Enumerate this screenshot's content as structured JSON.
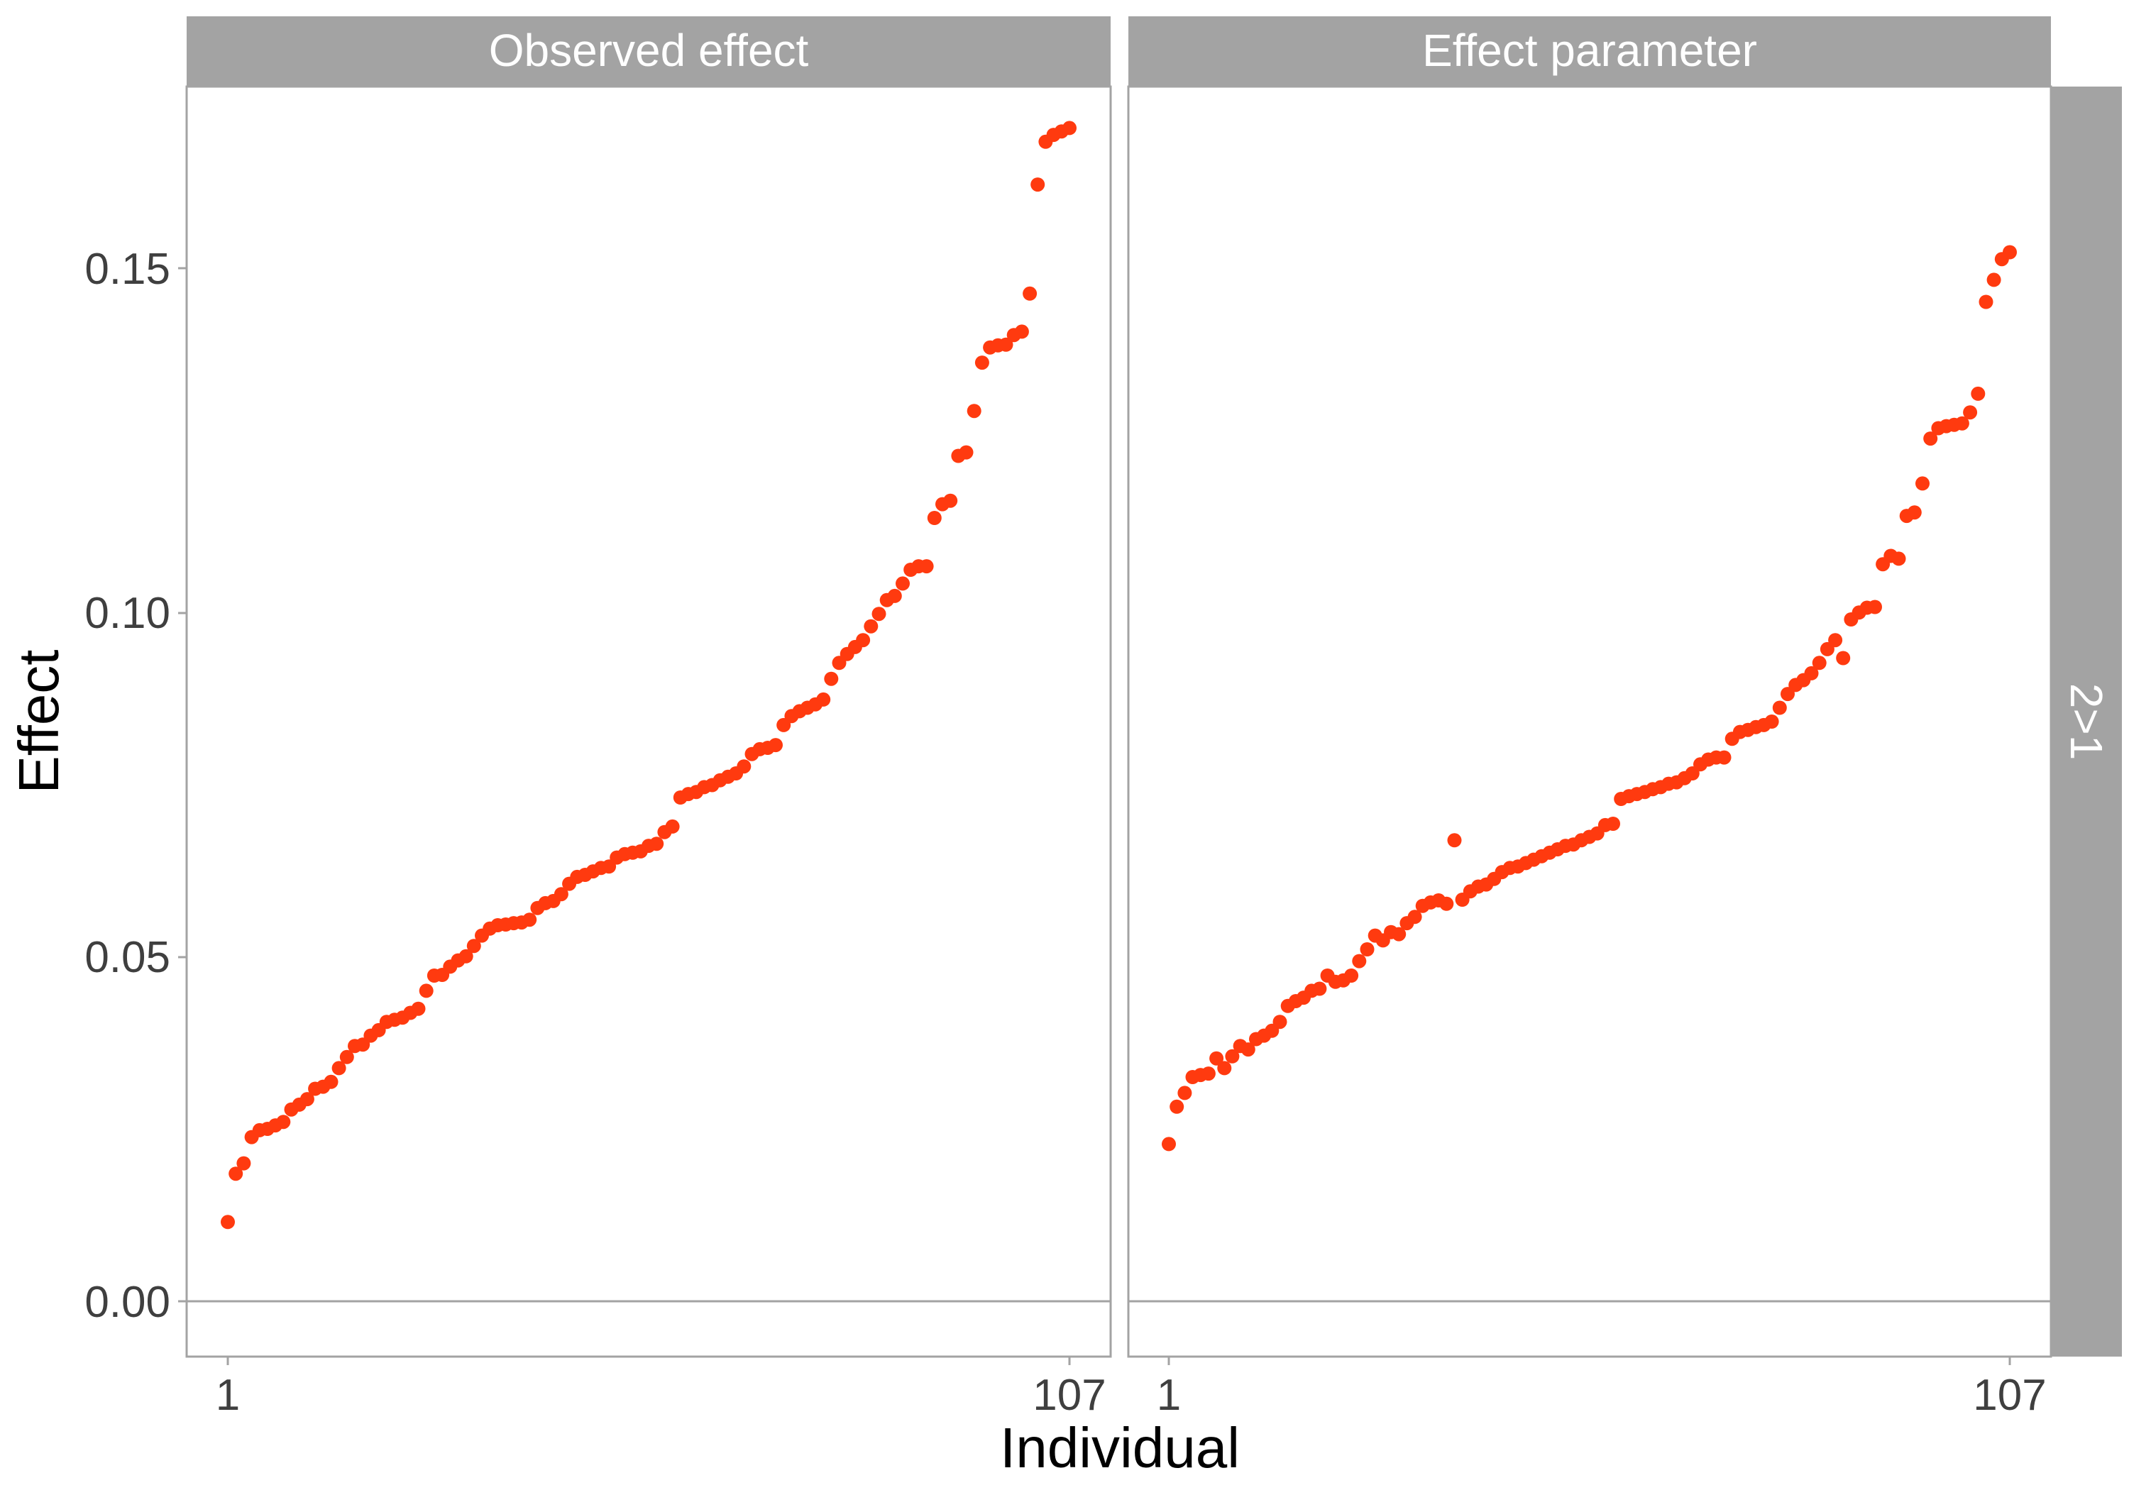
{
  "chart_data": {
    "type": "scatter",
    "point_color": "#FF3A0F",
    "strip_color": "#A3A3A3",
    "reference_line_y": 0,
    "xlabel": "Individual",
    "ylabel": "Effect",
    "xlim": [
      1,
      107
    ],
    "ylim": [
      -0.008,
      0.176
    ],
    "x_ticks": [
      1,
      107
    ],
    "y_ticks": [
      "0.00",
      "0.05",
      "0.10",
      "0.15"
    ],
    "row_strip_label": "2>1",
    "panels": [
      {
        "strip_label": "Observed effect",
        "x": [
          1,
          2,
          3,
          4,
          5,
          6,
          7,
          8,
          9,
          10,
          11,
          12,
          13,
          14,
          15,
          16,
          17,
          18,
          19,
          20,
          21,
          22,
          23,
          24,
          25,
          26,
          27,
          28,
          29,
          30,
          31,
          32,
          33,
          34,
          35,
          36,
          37,
          38,
          39,
          40,
          41,
          42,
          43,
          44,
          45,
          46,
          47,
          48,
          49,
          50,
          51,
          52,
          53,
          54,
          55,
          56,
          57,
          58,
          59,
          60,
          61,
          62,
          63,
          64,
          65,
          66,
          67,
          68,
          69,
          70,
          71,
          72,
          73,
          74,
          75,
          76,
          77,
          78,
          79,
          80,
          81,
          82,
          83,
          84,
          85,
          86,
          87,
          88,
          89,
          90,
          91,
          92,
          93,
          94,
          95,
          96,
          97,
          98,
          99,
          100,
          101,
          102,
          103,
          104,
          105,
          106,
          107
        ],
        "y": [
          0.0115,
          0.0185,
          0.02,
          0.0238,
          0.0248,
          0.025,
          0.0255,
          0.026,
          0.0278,
          0.0285,
          0.0293,
          0.0308,
          0.0311,
          0.0318,
          0.0338,
          0.0354,
          0.037,
          0.0372,
          0.0385,
          0.0393,
          0.0405,
          0.0408,
          0.0411,
          0.0418,
          0.0424,
          0.045,
          0.0472,
          0.0473,
          0.0485,
          0.0494,
          0.05,
          0.0515,
          0.053,
          0.054,
          0.0545,
          0.0546,
          0.0548,
          0.0549,
          0.0553,
          0.057,
          0.0577,
          0.058,
          0.059,
          0.0605,
          0.0615,
          0.0618,
          0.0623,
          0.0628,
          0.063,
          0.0643,
          0.0648,
          0.065,
          0.0652,
          0.066,
          0.0663,
          0.068,
          0.0688,
          0.073,
          0.0735,
          0.0738,
          0.0745,
          0.0748,
          0.0755,
          0.076,
          0.0765,
          0.0775,
          0.0793,
          0.08,
          0.0802,
          0.0806,
          0.0835,
          0.0848,
          0.0855,
          0.086,
          0.0865,
          0.0872,
          0.0902,
          0.0925,
          0.0938,
          0.0948,
          0.0958,
          0.0978,
          0.0996,
          0.1016,
          0.1022,
          0.104,
          0.106,
          0.1065,
          0.1065,
          0.1135,
          0.1155,
          0.116,
          0.1225,
          0.123,
          0.129,
          0.136,
          0.1382,
          0.1385,
          0.1386,
          0.14,
          0.1405,
          0.146,
          0.1618,
          0.168,
          0.169,
          0.1695,
          0.17
        ],
        "note_unused": ""
      },
      {
        "strip_label": "Effect parameter",
        "x": [
          1,
          2,
          3,
          4,
          5,
          6,
          7,
          8,
          9,
          10,
          11,
          12,
          13,
          14,
          15,
          16,
          17,
          18,
          19,
          20,
          21,
          22,
          23,
          24,
          25,
          26,
          27,
          28,
          29,
          30,
          31,
          32,
          33,
          34,
          35,
          36,
          37,
          38,
          39,
          40,
          41,
          42,
          43,
          44,
          45,
          46,
          47,
          48,
          49,
          50,
          51,
          52,
          53,
          54,
          55,
          56,
          57,
          58,
          59,
          60,
          61,
          62,
          63,
          64,
          65,
          66,
          67,
          68,
          69,
          70,
          71,
          72,
          73,
          74,
          75,
          76,
          77,
          78,
          79,
          80,
          81,
          82,
          83,
          84,
          85,
          86,
          87,
          88,
          89,
          90,
          91,
          92,
          93,
          94,
          95,
          96,
          97,
          98,
          99,
          100,
          101,
          102,
          103,
          104,
          105,
          106,
          107
        ],
        "y": [
          0.0228,
          0.0282,
          0.0302,
          0.0325,
          0.0328,
          0.033,
          0.0352,
          0.0338,
          0.0355,
          0.037,
          0.0365,
          0.038,
          0.0385,
          0.0392,
          0.0405,
          0.0428,
          0.0435,
          0.044,
          0.045,
          0.0453,
          0.0472,
          0.0463,
          0.0465,
          0.0472,
          0.0493,
          0.051,
          0.053,
          0.0523,
          0.0535,
          0.0532,
          0.0548,
          0.0557,
          0.0573,
          0.0578,
          0.0581,
          0.0576,
          0.0668,
          0.0582,
          0.0594,
          0.0601,
          0.0604,
          0.0612,
          0.0622,
          0.0628,
          0.063,
          0.0635,
          0.064,
          0.0645,
          0.065,
          0.0655,
          0.066,
          0.0662,
          0.0668,
          0.0673,
          0.0678,
          0.069,
          0.0692,
          0.0728,
          0.0732,
          0.0735,
          0.0738,
          0.0742,
          0.0745,
          0.075,
          0.0752,
          0.0758,
          0.0765,
          0.0778,
          0.0785,
          0.0788,
          0.0788,
          0.0815,
          0.0825,
          0.0828,
          0.0832,
          0.0835,
          0.084,
          0.086,
          0.088,
          0.0893,
          0.09,
          0.091,
          0.0925,
          0.0945,
          0.0958,
          0.0932,
          0.0988,
          0.0998,
          0.1005,
          0.1006,
          0.1068,
          0.108,
          0.1076,
          0.1138,
          0.1143,
          0.1185,
          0.125,
          0.1265,
          0.1268,
          0.127,
          0.1272,
          0.1288,
          0.1315,
          0.1448,
          0.148,
          0.151,
          0.152
        ],
        "note_unused": ""
      }
    ]
  }
}
